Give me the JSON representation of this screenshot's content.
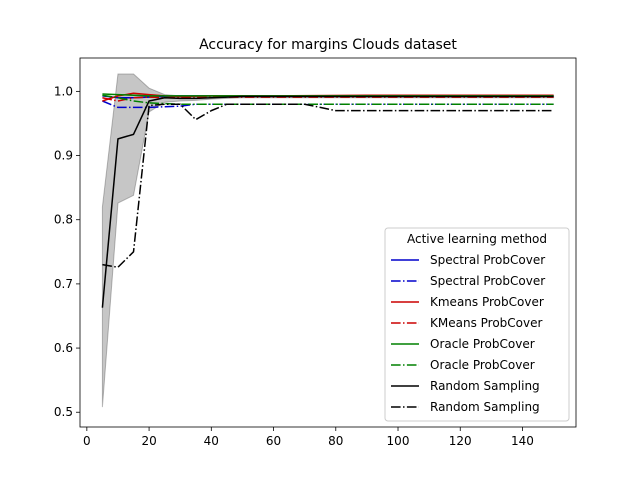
{
  "chart_data": {
    "type": "line",
    "title": "Accuracy for margins Clouds dataset",
    "xlabel": "",
    "ylabel": "",
    "xlim": [
      -2.2,
      157.2
    ],
    "ylim": [
      0.477,
      1.052
    ],
    "x_ticks": [
      0,
      20,
      40,
      60,
      80,
      100,
      120,
      140
    ],
    "y_ticks": [
      0.5,
      0.6,
      0.7,
      0.8,
      0.9,
      1.0
    ],
    "x_tick_labels": [
      "0",
      "20",
      "40",
      "60",
      "80",
      "100",
      "120",
      "140"
    ],
    "y_tick_labels": [
      "0.5",
      "0.6",
      "0.7",
      "0.8",
      "0.9",
      "1.0"
    ],
    "grid": false,
    "legend": {
      "title": "Active learning method",
      "placement": "lower right"
    },
    "band": {
      "color": "#808080",
      "opacity": 0.45,
      "x": [
        5,
        10,
        15,
        20,
        25,
        30,
        35,
        40,
        45,
        50,
        150
      ],
      "upper": [
        0.82,
        1.027,
        1.027,
        1.005,
        0.995,
        0.993,
        0.992,
        0.993,
        0.993,
        0.993,
        0.993
      ],
      "lower": [
        0.508,
        0.826,
        0.838,
        0.968,
        0.983,
        0.985,
        0.986,
        0.988,
        0.989,
        0.99,
        0.99
      ]
    },
    "series": [
      {
        "name": "Spectral ProbCover",
        "color": "#0000cc",
        "style": "solid",
        "x": [
          5,
          10,
          15,
          20,
          25,
          30,
          35,
          40,
          50,
          60,
          80,
          100,
          150
        ],
        "y": [
          0.993,
          0.99,
          0.99,
          0.991,
          0.992,
          0.993,
          0.993,
          0.993,
          0.993,
          0.993,
          0.993,
          0.993,
          0.993
        ]
      },
      {
        "name": "Spectral ProbCover",
        "color": "#0000cc",
        "style": "dashdot",
        "x": [
          5,
          10,
          15,
          20,
          25,
          30,
          35,
          40,
          60,
          80,
          100,
          150
        ],
        "y": [
          0.985,
          0.975,
          0.975,
          0.975,
          0.976,
          0.977,
          0.98,
          0.98,
          0.98,
          0.98,
          0.98,
          0.98
        ]
      },
      {
        "name": "Kmeans ProbCover",
        "color": "#cc0000",
        "style": "solid",
        "x": [
          5,
          10,
          15,
          20,
          25,
          30,
          40,
          60,
          90,
          150
        ],
        "y": [
          0.985,
          0.993,
          0.997,
          0.995,
          0.993,
          0.992,
          0.993,
          0.993,
          0.994,
          0.994
        ]
      },
      {
        "name": "KMeans ProbCover",
        "color": "#cc0000",
        "style": "dashdot",
        "x": [
          5,
          10,
          15,
          20,
          25,
          30,
          40,
          60,
          100,
          150
        ],
        "y": [
          0.99,
          0.985,
          0.99,
          0.991,
          0.99,
          0.99,
          0.991,
          0.991,
          0.991,
          0.991
        ]
      },
      {
        "name": "Oracle ProbCover",
        "color": "#008000",
        "style": "solid",
        "x": [
          5,
          10,
          15,
          20,
          30,
          40,
          60,
          100,
          150
        ],
        "y": [
          0.996,
          0.995,
          0.994,
          0.993,
          0.993,
          0.993,
          0.993,
          0.993,
          0.993
        ]
      },
      {
        "name": "Oracle ProbCover",
        "color": "#008000",
        "style": "dashdot",
        "x": [
          5,
          10,
          15,
          20,
          30,
          40,
          60,
          100,
          150
        ],
        "y": [
          0.994,
          0.99,
          0.985,
          0.982,
          0.98,
          0.98,
          0.98,
          0.98,
          0.98
        ]
      },
      {
        "name": "Random Sampling",
        "color": "#000000",
        "style": "solid",
        "x": [
          5,
          10,
          15,
          20,
          25,
          30,
          35,
          40,
          45,
          50,
          60,
          80,
          100,
          150
        ],
        "y": [
          0.663,
          0.926,
          0.933,
          0.985,
          0.99,
          0.989,
          0.989,
          0.99,
          0.991,
          0.992,
          0.992,
          0.992,
          0.992,
          0.992
        ]
      },
      {
        "name": "Random Sampling",
        "color": "#000000",
        "style": "dashdot",
        "x": [
          5,
          10,
          15,
          20,
          25,
          30,
          35,
          40,
          45,
          50,
          60,
          70,
          80,
          90,
          100,
          150
        ],
        "y": [
          0.73,
          0.726,
          0.75,
          0.978,
          0.98,
          0.98,
          0.956,
          0.97,
          0.98,
          0.98,
          0.98,
          0.98,
          0.97,
          0.97,
          0.97,
          0.97
        ]
      }
    ]
  }
}
